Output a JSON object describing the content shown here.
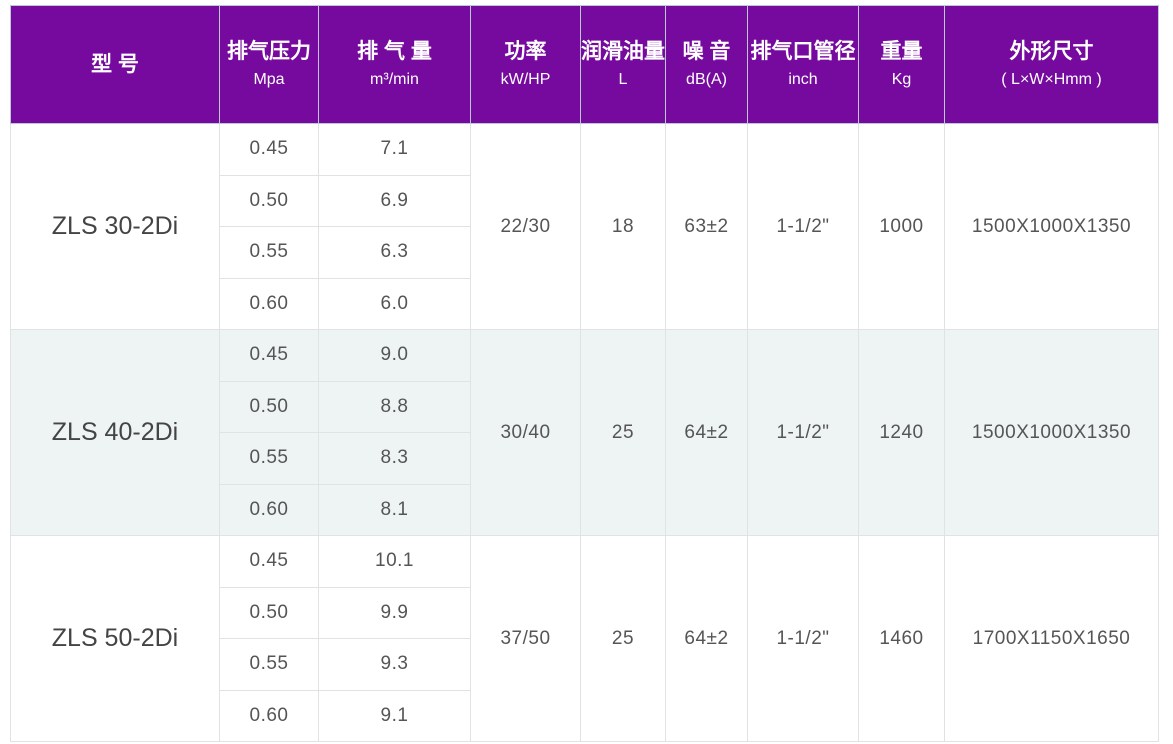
{
  "header": {
    "model": "型 号",
    "pressure": {
      "label": "排气压力",
      "unit": "Mpa"
    },
    "flow": {
      "label": "排 气 量",
      "unit": "m³/min"
    },
    "power": {
      "label": "功率",
      "unit": "kW/HP"
    },
    "oil": {
      "label": "润滑油量",
      "unit": "L"
    },
    "noise": {
      "label": "噪 音",
      "unit": "dB(A)"
    },
    "outlet": {
      "label": "排气口管径",
      "unit": "inch"
    },
    "weight": {
      "label": "重量",
      "unit": "Kg"
    },
    "dimensions": {
      "label": "外形尺寸",
      "unit": "( L×W×Hmm )"
    }
  },
  "colors": {
    "header_bg": "#760a9e",
    "alt_row_bg": "#eef3f3"
  },
  "models": [
    {
      "name": "ZLS 30-2Di",
      "rows": [
        {
          "pressure": "0.45",
          "flow": "7.1"
        },
        {
          "pressure": "0.50",
          "flow": "6.9"
        },
        {
          "pressure": "0.55",
          "flow": "6.3"
        },
        {
          "pressure": "0.60",
          "flow": "6.0"
        }
      ],
      "power": "22/30",
      "oil": "18",
      "noise": "63±2",
      "outlet": "1-1/2\"",
      "weight": "1000",
      "dimensions": "1500X1000X1350"
    },
    {
      "name": "ZLS 40-2Di",
      "rows": [
        {
          "pressure": "0.45",
          "flow": "9.0"
        },
        {
          "pressure": "0.50",
          "flow": "8.8"
        },
        {
          "pressure": "0.55",
          "flow": "8.3"
        },
        {
          "pressure": "0.60",
          "flow": "8.1"
        }
      ],
      "power": "30/40",
      "oil": "25",
      "noise": "64±2",
      "outlet": "1-1/2\"",
      "weight": "1240",
      "dimensions": "1500X1000X1350"
    },
    {
      "name": "ZLS 50-2Di",
      "rows": [
        {
          "pressure": "0.45",
          "flow": "10.1"
        },
        {
          "pressure": "0.50",
          "flow": "9.9"
        },
        {
          "pressure": "0.55",
          "flow": "9.3"
        },
        {
          "pressure": "0.60",
          "flow": "9.1"
        }
      ],
      "power": "37/50",
      "oil": "25",
      "noise": "64±2",
      "outlet": "1-1/2\"",
      "weight": "1460",
      "dimensions": "1700X1150X1650"
    }
  ]
}
